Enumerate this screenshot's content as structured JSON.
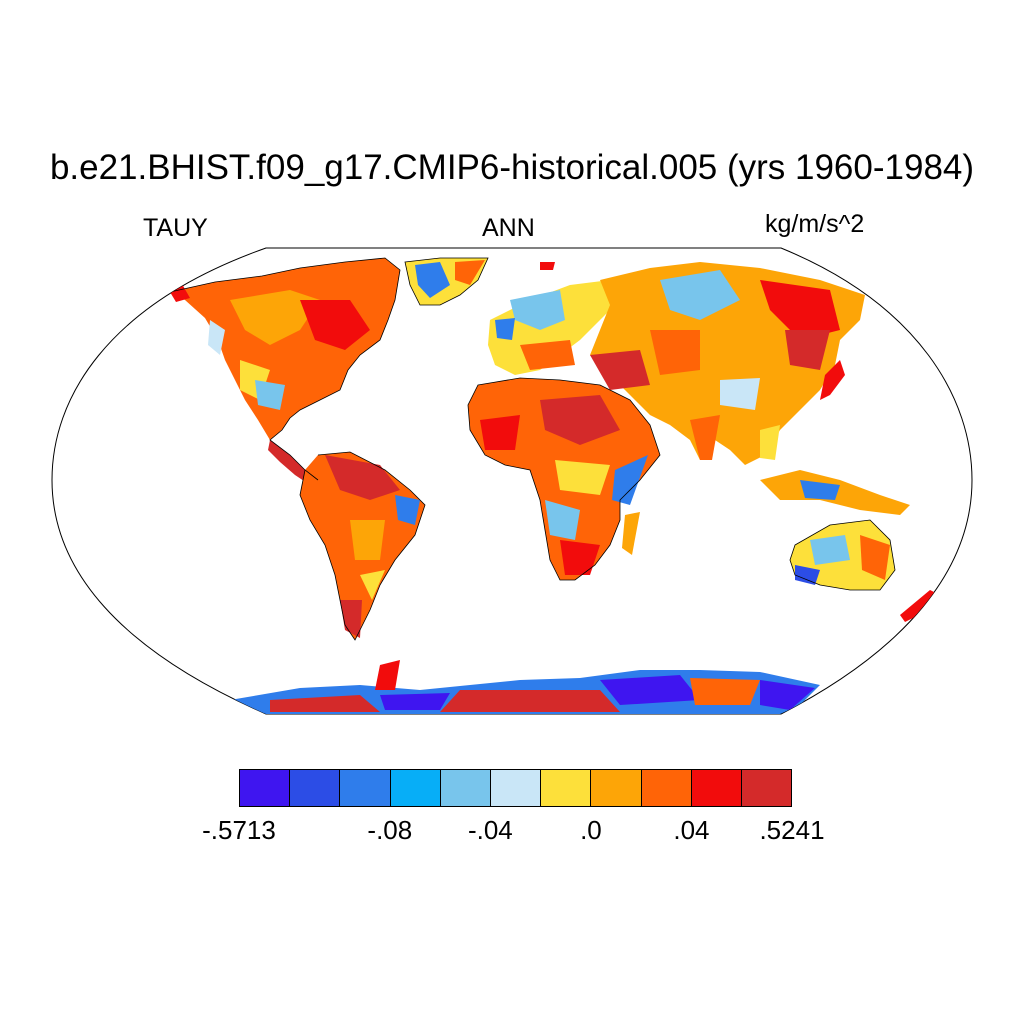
{
  "title": "b.e21.BHIST.f09_g17.CMIP6-historical.005 (yrs 1960-1984)",
  "variable": "TAUY",
  "season": "ANN",
  "units": "kg/m/s^2",
  "colorbar": {
    "colors": [
      "#3f15f0",
      "#2c4de6",
      "#2f7deb",
      "#07aef7",
      "#78c5ec",
      "#c9e6f7",
      "#fde03a",
      "#fda507",
      "#ff6407",
      "#f20c0c",
      "#d42a2a"
    ],
    "labels": [
      {
        "text": "-.5713",
        "boundary": 0
      },
      {
        "text": "-.08",
        "boundary": 3
      },
      {
        "text": "-.04",
        "boundary": 5
      },
      {
        "text": ".0",
        "boundary": 7
      },
      {
        "text": ".04",
        "boundary": 9
      },
      {
        "text": ".5241",
        "boundary": 11
      }
    ]
  },
  "map": {
    "projection": "Robinson",
    "ocean_color": "#ffffff",
    "coast_color": "#000000"
  }
}
